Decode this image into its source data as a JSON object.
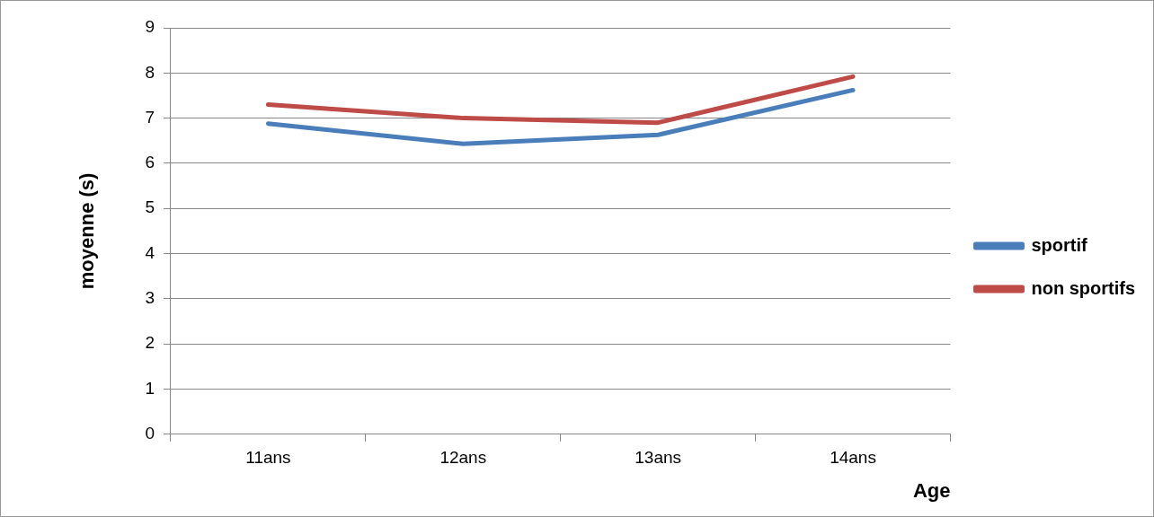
{
  "chart_data": {
    "type": "line",
    "xlabel": "Age",
    "ylabel": "moyenne (s)",
    "categories": [
      "11ans",
      "12ans",
      "13ans",
      "14ans"
    ],
    "series": [
      {
        "name": "sportif",
        "color": "#4a7ebb",
        "values": [
          6.88,
          6.43,
          6.63,
          7.62
        ]
      },
      {
        "name": "non sportifs",
        "color": "#be4b48",
        "values": [
          7.3,
          7.0,
          6.9,
          7.92
        ]
      }
    ],
    "ylim": [
      0,
      9
    ],
    "yticks": [
      0,
      1,
      2,
      3,
      4,
      5,
      6,
      7,
      8,
      9
    ],
    "grid": "y",
    "legend": "right",
    "marker": "none",
    "line_style": "solid"
  }
}
